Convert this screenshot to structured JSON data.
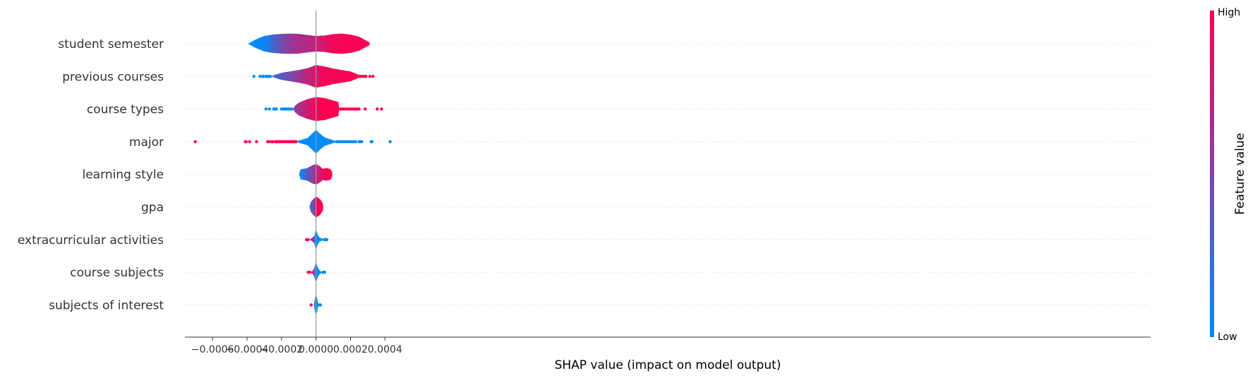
{
  "chart_data": {
    "type": "violin",
    "xlabel": "SHAP value (impact on model output)",
    "xlim": [
      -0.00076,
      0.00484
    ],
    "x_ticks": [
      {
        "value": -0.0006,
        "label": "−0.0006"
      },
      {
        "value": -0.0004,
        "label": "−0.0004"
      },
      {
        "value": -0.0002,
        "label": "−0.0002"
      },
      {
        "value": 0.0,
        "label": "0.0000"
      },
      {
        "value": 0.0002,
        "label": "0.0002"
      },
      {
        "value": 0.0004,
        "label": "0.0004"
      }
    ],
    "colorbar": {
      "label": "Feature value",
      "high": "High",
      "low": "Low",
      "low_color": "#008bfb",
      "high_color": "#ff0051"
    },
    "features": [
      {
        "name": "student semester",
        "shape": [
          [
            -0.000395,
            0.0
          ],
          [
            -0.00035,
            0.3
          ],
          [
            -0.0003,
            0.55
          ],
          [
            -0.00025,
            0.65
          ],
          [
            -0.0002,
            0.7
          ],
          [
            -0.00015,
            0.72
          ],
          [
            -0.0001,
            0.7
          ],
          [
            -5e-05,
            0.62
          ],
          [
            0.0,
            0.55
          ],
          [
            5e-05,
            0.58
          ],
          [
            0.0001,
            0.68
          ],
          [
            0.00015,
            0.72
          ],
          [
            0.0002,
            0.65
          ],
          [
            0.00025,
            0.5
          ],
          [
            0.00031,
            0.1
          ],
          [
            0.000312,
            0.0
          ]
        ],
        "colors": [
          [
            -0.00039,
            0.0
          ],
          [
            -0.00029,
            0.05
          ],
          [
            -0.00024,
            0.3
          ],
          [
            -0.0002,
            0.45
          ],
          [
            -0.00012,
            0.65
          ],
          [
            -5e-05,
            0.7
          ],
          [
            0.0,
            0.78
          ],
          [
            5e-05,
            0.85
          ],
          [
            9e-05,
            0.95
          ],
          [
            0.00031,
            1.0
          ]
        ],
        "outliers": []
      },
      {
        "name": "previous courses",
        "shape": [
          [
            -0.00026,
            0.0
          ],
          [
            -0.00024,
            0.1
          ],
          [
            -0.0002,
            0.25
          ],
          [
            -0.00015,
            0.35
          ],
          [
            -0.0001,
            0.45
          ],
          [
            -5e-05,
            0.58
          ],
          [
            0.0,
            0.8
          ],
          [
            5e-05,
            0.7
          ],
          [
            0.0001,
            0.55
          ],
          [
            0.00015,
            0.45
          ],
          [
            0.0002,
            0.35
          ],
          [
            0.00024,
            0.15
          ],
          [
            0.00025,
            0.0
          ]
        ],
        "colors": [
          [
            -0.00026,
            0.2
          ],
          [
            -0.00015,
            0.45
          ],
          [
            -0.0001,
            0.6
          ],
          [
            -5e-05,
            0.75
          ],
          [
            0.0,
            0.85
          ],
          [
            4e-05,
            0.95
          ],
          [
            0.00025,
            1.0
          ]
        ],
        "outliers": [
          [
            -0.00036,
            0
          ],
          [
            -0.000325,
            0
          ],
          [
            -0.00031,
            0
          ],
          [
            -0.000305,
            0
          ],
          [
            -0.00029,
            0
          ],
          [
            -0.000285,
            0
          ],
          [
            -0.00028,
            0
          ],
          [
            -0.00027,
            0
          ],
          [
            -0.000265,
            0
          ],
          [
            0.000238,
            1
          ],
          [
            0.00024,
            1
          ],
          [
            0.000245,
            1
          ],
          [
            0.00025,
            1
          ],
          [
            0.000255,
            1
          ],
          [
            0.00026,
            1
          ],
          [
            0.00027,
            1
          ],
          [
            0.00028,
            1
          ],
          [
            0.000285,
            1
          ],
          [
            0.00029,
            1
          ],
          [
            0.000312,
            1
          ],
          [
            0.00033,
            1
          ]
        ]
      },
      {
        "name": "course types",
        "shape": [
          [
            -0.000135,
            0.0
          ],
          [
            -0.00012,
            0.25
          ],
          [
            -0.0001,
            0.45
          ],
          [
            -5e-05,
            0.7
          ],
          [
            0.0,
            0.85
          ],
          [
            5e-05,
            0.78
          ],
          [
            0.0001,
            0.6
          ],
          [
            0.00013,
            0.5
          ],
          [
            0.000135,
            0.0
          ]
        ],
        "colors": [
          [
            -0.000135,
            0.45
          ],
          [
            -0.0001,
            0.65
          ],
          [
            -5e-05,
            0.8
          ],
          [
            -1e-05,
            0.9
          ],
          [
            2e-05,
            1.0
          ],
          [
            0.000135,
            1.0
          ]
        ],
        "outliers": [
          [
            -0.00029,
            0
          ],
          [
            -0.00027,
            0
          ],
          [
            -0.000245,
            0
          ],
          [
            -0.00024,
            0
          ],
          [
            -0.000235,
            0
          ],
          [
            -0.00023,
            0
          ],
          [
            -0.0002,
            0
          ],
          [
            -0.000195,
            0
          ],
          [
            -0.00019,
            0
          ],
          [
            -0.000185,
            0
          ],
          [
            -0.00018,
            0
          ],
          [
            -0.000175,
            0
          ],
          [
            -0.00017,
            0
          ],
          [
            -0.00016,
            0
          ],
          [
            -0.000155,
            0
          ],
          [
            -0.00015,
            0
          ],
          [
            -0.000145,
            0
          ],
          [
            -0.00014,
            0
          ],
          [
            0.00014,
            1
          ],
          [
            0.00015,
            1
          ],
          [
            0.00016,
            1
          ],
          [
            0.00017,
            1
          ],
          [
            0.00018,
            1
          ],
          [
            0.00019,
            1
          ],
          [
            0.0002,
            1
          ],
          [
            0.00021,
            1
          ],
          [
            0.00022,
            1
          ],
          [
            0.00023,
            1
          ],
          [
            0.000235,
            1
          ],
          [
            0.00024,
            1
          ],
          [
            0.00025,
            1
          ],
          [
            0.000285,
            1
          ],
          [
            0.000355,
            1
          ],
          [
            0.00038,
            1
          ]
        ]
      },
      {
        "name": "major",
        "shape": [
          [
            -0.00011,
            0.0
          ],
          [
            -0.0001,
            0.08
          ],
          [
            -5e-05,
            0.25
          ],
          [
            -2e-05,
            0.6
          ],
          [
            0.0,
            0.85
          ],
          [
            2e-05,
            0.6
          ],
          [
            5e-05,
            0.3
          ],
          [
            0.0001,
            0.1
          ],
          [
            0.00012,
            0.02
          ],
          [
            0.000125,
            0.0
          ]
        ],
        "colors": [
          [
            -0.00011,
            0.0
          ],
          [
            0.000125,
            0.0
          ]
        ],
        "outliers": [
          [
            -0.0007,
            1
          ],
          [
            -0.00041,
            1
          ],
          [
            -0.000405,
            1
          ],
          [
            -0.000385,
            1
          ],
          [
            -0.000345,
            1
          ],
          [
            -0.00028,
            1
          ],
          [
            -0.000275,
            1
          ],
          [
            -0.00026,
            1
          ],
          [
            -0.00025,
            1
          ],
          [
            -0.000235,
            1
          ],
          [
            -0.00023,
            1
          ],
          [
            -0.000225,
            1
          ],
          [
            -0.00022,
            1
          ],
          [
            -0.000215,
            1
          ],
          [
            -0.00021,
            1
          ],
          [
            -0.000205,
            1
          ],
          [
            -0.0002,
            1
          ],
          [
            -0.00019,
            1
          ],
          [
            -0.000185,
            1
          ],
          [
            -0.00018,
            1
          ],
          [
            -0.000175,
            1
          ],
          [
            -0.00017,
            1
          ],
          [
            -0.000165,
            1
          ],
          [
            -0.00016,
            1
          ],
          [
            -0.000155,
            1
          ],
          [
            -0.00015,
            1
          ],
          [
            -0.000145,
            1
          ],
          [
            -0.00014,
            1
          ],
          [
            -0.000135,
            1
          ],
          [
            -0.00013,
            1
          ],
          [
            -0.000125,
            1
          ],
          [
            -0.00012,
            1
          ],
          [
            -0.000115,
            1
          ],
          [
            0.00012,
            0
          ],
          [
            0.000125,
            0
          ],
          [
            0.00013,
            0
          ],
          [
            0.00014,
            0
          ],
          [
            0.00015,
            0
          ],
          [
            0.00016,
            0
          ],
          [
            0.00017,
            0
          ],
          [
            0.00018,
            0
          ],
          [
            0.00019,
            0
          ],
          [
            0.0002,
            0
          ],
          [
            0.00021,
            0
          ],
          [
            0.00022,
            0
          ],
          [
            0.00023,
            0
          ],
          [
            0.00025,
            0
          ],
          [
            0.000255,
            0
          ],
          [
            0.000265,
            0
          ],
          [
            0.00032,
            0
          ],
          [
            0.000325,
            0
          ],
          [
            0.00043,
            0
          ]
        ]
      },
      {
        "name": "learning style",
        "shape": [
          [
            -9.8e-05,
            0.0
          ],
          [
            -9e-05,
            0.35
          ],
          [
            -7e-05,
            0.4
          ],
          [
            -5e-05,
            0.45
          ],
          [
            -2e-05,
            0.65
          ],
          [
            0.0,
            0.72
          ],
          [
            2e-05,
            0.6
          ],
          [
            4e-05,
            0.4
          ],
          [
            6e-05,
            0.45
          ],
          [
            8e-05,
            0.4
          ],
          [
            9.2e-05,
            0.25
          ],
          [
            9.5e-05,
            0.0
          ]
        ],
        "colors": [
          [
            -9.8e-05,
            0.0
          ],
          [
            -8e-05,
            0.1
          ],
          [
            -5e-05,
            0.35
          ],
          [
            -2e-05,
            0.55
          ],
          [
            0.0,
            0.7
          ],
          [
            2e-05,
            0.8
          ],
          [
            4e-05,
            0.9
          ],
          [
            7e-05,
            1.0
          ],
          [
            9.5e-05,
            1.0
          ]
        ],
        "outliers": []
      },
      {
        "name": "gpa",
        "shape": [
          [
            -3.8e-05,
            0.0
          ],
          [
            -3e-05,
            0.35
          ],
          [
            -2e-05,
            0.5
          ],
          [
            0.0,
            0.75
          ],
          [
            2e-05,
            0.6
          ],
          [
            3e-05,
            0.45
          ],
          [
            4e-05,
            0.25
          ],
          [
            4.2e-05,
            0.0
          ]
        ],
        "colors": [
          [
            -3.8e-05,
            0.1
          ],
          [
            -2e-05,
            0.4
          ],
          [
            0.0,
            0.8
          ],
          [
            1e-05,
            0.95
          ],
          [
            4.2e-05,
            1.0
          ]
        ],
        "outliers": []
      },
      {
        "name": "extracurricular activities",
        "shape": [
          [
            -4e-05,
            0.0
          ],
          [
            -3e-05,
            0.05
          ],
          [
            -1e-05,
            0.25
          ],
          [
            0.0,
            0.75
          ],
          [
            1e-05,
            0.35
          ],
          [
            2e-05,
            0.15
          ],
          [
            4e-05,
            0.04
          ],
          [
            4.5e-05,
            0.0
          ]
        ],
        "colors": [
          [
            -4e-05,
            1.0
          ],
          [
            -2e-05,
            0.7
          ],
          [
            -5e-06,
            0.0
          ],
          [
            4.5e-05,
            0.0
          ]
        ],
        "outliers": [
          [
            -5.5e-05,
            1
          ],
          [
            -5e-05,
            1
          ],
          [
            -4.5e-05,
            1
          ],
          [
            4.8e-05,
            0
          ],
          [
            5.2e-05,
            0
          ],
          [
            5.8e-05,
            0
          ],
          [
            6.3e-05,
            0
          ]
        ]
      },
      {
        "name": "course subjects",
        "shape": [
          [
            -3e-05,
            0.0
          ],
          [
            -2e-05,
            0.1
          ],
          [
            -1e-05,
            0.3
          ],
          [
            0.0,
            0.75
          ],
          [
            1e-05,
            0.35
          ],
          [
            2e-05,
            0.15
          ],
          [
            3e-05,
            0.05
          ],
          [
            3.5e-05,
            0.0
          ]
        ],
        "colors": [
          [
            -3e-05,
            1.0
          ],
          [
            -1.5e-05,
            0.7
          ],
          [
            -3e-06,
            0.0
          ],
          [
            3.5e-05,
            0.0
          ]
        ],
        "outliers": [
          [
            -4.5e-05,
            1
          ],
          [
            -4e-05,
            1
          ],
          [
            -3.5e-05,
            1
          ],
          [
            4e-05,
            0
          ],
          [
            4.5e-05,
            0
          ],
          [
            5e-05,
            0
          ]
        ]
      },
      {
        "name": "subjects of interest",
        "shape": [
          [
            -1.2e-05,
            0.0
          ],
          [
            -8e-06,
            0.35
          ],
          [
            0.0,
            0.75
          ],
          [
            8e-06,
            0.4
          ],
          [
            1.2e-05,
            0.15
          ],
          [
            1.6e-05,
            0.0
          ]
        ],
        "colors": [
          [
            -1.2e-05,
            0.6
          ],
          [
            -6e-06,
            0.0
          ],
          [
            1.6e-05,
            0.0
          ]
        ],
        "outliers": [
          [
            -2.8e-05,
            1
          ],
          [
            2e-05,
            0
          ],
          [
            2.6e-05,
            0
          ]
        ]
      }
    ]
  }
}
